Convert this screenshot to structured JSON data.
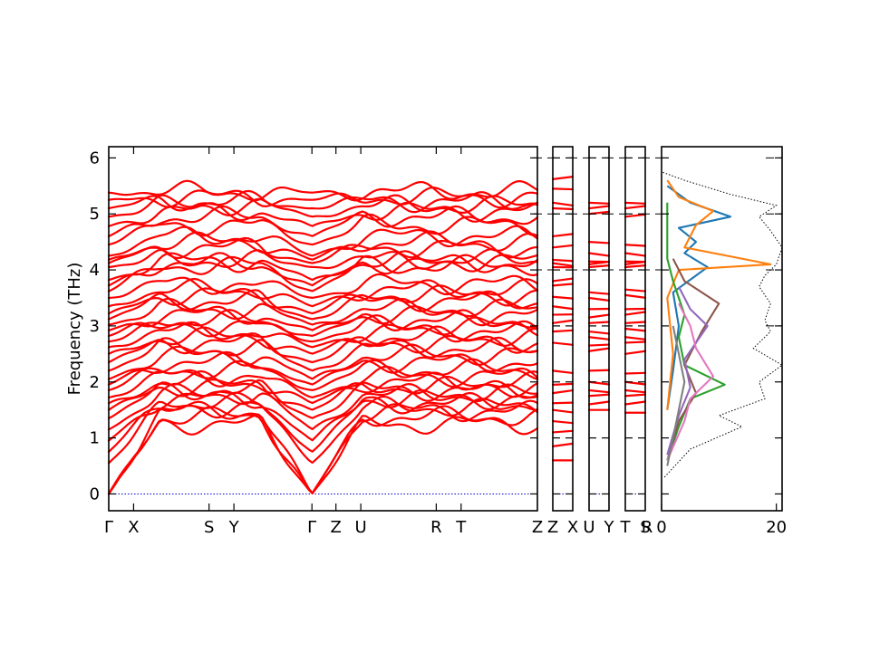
{
  "chart_data": {
    "type": "line",
    "ylabel": "Frequency (THz)",
    "ylim": [
      -0.3,
      6.2
    ],
    "yticks": [
      0,
      1,
      2,
      3,
      4,
      5,
      6
    ],
    "band_color": "#ff0000",
    "zero_line_color": "#0000cc",
    "band_path_labels": [
      "Γ",
      "X",
      "S",
      "Y",
      "Γ",
      "Z",
      "U",
      "R",
      "T",
      "Z",
      "X",
      "U",
      "Y",
      "T",
      "S",
      "R"
    ],
    "panels": [
      {
        "id": "main",
        "xlim": [
          0,
          1
        ],
        "ticks": [
          {
            "label": "Γ",
            "x": 0.0
          },
          {
            "label": "X",
            "x": 0.058
          },
          {
            "label": "S",
            "x": 0.234
          },
          {
            "label": "Y",
            "x": 0.292
          },
          {
            "label": "Γ",
            "x": 0.474
          },
          {
            "label": "Z",
            "x": 0.53
          },
          {
            "label": "U",
            "x": 0.588
          },
          {
            "label": "R",
            "x": 0.764
          },
          {
            "label": "T",
            "x": 0.822
          },
          {
            "label": "Z",
            "x": 1.0
          }
        ],
        "band_frequencies_at_gamma": [
          0,
          0,
          0,
          0.55,
          0.75,
          0.95,
          1.15,
          1.35,
          1.5,
          1.62,
          1.72,
          1.85,
          1.95,
          2.05,
          2.2,
          2.35,
          2.5,
          2.62,
          2.72,
          2.82,
          2.92,
          3.02,
          3.12,
          3.22,
          3.35,
          3.5,
          3.62,
          3.72,
          3.82,
          4.05,
          4.12,
          4.18,
          4.25,
          4.45,
          4.6,
          4.78,
          4.95,
          5.1,
          5.25,
          5.38,
          5.5,
          5.6
        ],
        "band_frequencies_midpath": [
          1.25,
          1.38,
          1.48,
          1.55,
          1.62,
          1.7,
          1.78,
          1.85,
          1.92,
          2.0,
          2.1,
          2.22,
          2.35,
          2.48,
          2.6,
          2.7,
          2.8,
          2.9,
          3.0,
          3.1,
          3.2,
          3.3,
          3.45,
          3.55,
          3.65,
          3.75,
          4.08,
          4.12,
          4.15,
          4.18,
          4.4,
          4.5,
          4.6,
          4.8,
          4.95,
          5.05,
          5.15,
          5.22,
          5.3,
          5.4
        ]
      },
      {
        "id": "zx",
        "ticks": [
          {
            "label": "Z",
            "x": 0
          },
          {
            "label": "X",
            "x": 1
          }
        ],
        "band_frequencies": [
          0.6,
          0.85,
          1.1,
          1.3,
          1.5,
          1.62,
          1.8,
          1.95,
          2.2,
          2.7,
          2.9,
          3.05,
          3.2,
          3.35,
          3.52,
          3.72,
          3.8,
          4.05,
          4.12,
          4.18,
          4.4,
          4.6,
          5.1,
          5.2,
          5.45,
          5.62
        ]
      },
      {
        "id": "uy",
        "ticks": [
          {
            "label": "U",
            "x": 0
          },
          {
            "label": "Y",
            "x": 1
          }
        ],
        "band_frequencies": [
          1.5,
          1.6,
          1.75,
          1.85,
          2.0,
          2.2,
          2.55,
          2.65,
          2.8,
          2.9,
          3.05,
          3.15,
          3.3,
          3.5,
          3.6,
          4.05,
          4.1,
          4.15,
          4.3,
          4.5,
          5.0,
          5.1,
          5.2
        ]
      },
      {
        "id": "ts",
        "ticks": [
          {
            "label": "T",
            "x": 0
          },
          {
            "label": "S",
            "x": 1
          }
        ],
        "band_frequencies": [
          1.45,
          1.6,
          1.75,
          1.85,
          2.0,
          2.15,
          2.5,
          2.7,
          2.8,
          2.95,
          3.05,
          3.2,
          3.3,
          3.55,
          3.65,
          4.05,
          4.1,
          4.15,
          4.3,
          4.45,
          4.95,
          5.1,
          5.2
        ]
      },
      {
        "id": "r",
        "ticks": [
          {
            "label": "R",
            "x": 0
          }
        ],
        "xlabel_right": "R"
      },
      {
        "id": "dos",
        "xlim": [
          0,
          21
        ],
        "xticks": [
          0,
          20
        ],
        "series_colors": [
          "#1f77b4",
          "#ff7f0e",
          "#2ca02c",
          "#8c564b",
          "#9467bd",
          "#e377c2",
          "#7f7f7f"
        ],
        "total": {
          "color": "#000000",
          "freq": [
            0.3,
            0.8,
            1.2,
            1.4,
            1.7,
            2.0,
            2.3,
            2.6,
            2.9,
            3.1,
            3.4,
            3.7,
            3.9,
            4.1,
            4.4,
            4.7,
            4.95,
            5.15,
            5.35,
            5.6,
            5.75
          ],
          "dos": [
            0.5,
            5,
            14,
            10,
            18,
            17,
            21,
            16,
            19,
            18,
            19,
            17,
            18,
            20,
            21,
            19,
            17,
            20,
            12,
            4,
            0
          ]
        },
        "series": [
          {
            "color": "#1f77b4",
            "freq": [
              1.5,
              2.2,
              3.0,
              3.6,
              4.05,
              4.3,
              4.5,
              4.75,
              4.95,
              5.2,
              5.5
            ],
            "dos": [
              1,
              2,
              3,
              2,
              8,
              4,
              6,
              3,
              12,
              5,
              1
            ]
          },
          {
            "color": "#ff7f0e",
            "freq": [
              1.5,
              2.5,
              3.5,
              4.0,
              4.1,
              4.4,
              4.8,
              5.05,
              5.3,
              5.6
            ],
            "dos": [
              1,
              2,
              1,
              3,
              19,
              4,
              6,
              9,
              3,
              1
            ]
          },
          {
            "color": "#2ca02c",
            "freq": [
              0.6,
              1.2,
              1.7,
              1.95,
              2.3,
              2.8,
              3.2,
              3.8,
              4.2,
              4.8,
              5.2
            ],
            "dos": [
              1,
              3,
              5,
              11,
              4,
              3,
              4,
              2,
              1,
              1,
              1
            ]
          },
          {
            "color": "#8c564b",
            "freq": [
              0.6,
              1.3,
              1.8,
              2.3,
              2.9,
              3.4,
              3.8,
              4.2
            ],
            "dos": [
              1,
              3,
              6,
              4,
              7,
              10,
              4,
              2
            ]
          },
          {
            "color": "#9467bd",
            "freq": [
              0.7,
              1.4,
              1.9,
              2.4,
              3.0,
              3.3,
              3.7
            ],
            "dos": [
              1,
              3,
              5,
              4,
              8,
              5,
              3
            ]
          },
          {
            "color": "#e377c2",
            "freq": [
              0.6,
              1.3,
              1.7,
              2.1,
              2.6,
              3.0,
              3.4
            ],
            "dos": [
              1,
              4,
              5,
              9,
              6,
              5,
              3
            ]
          },
          {
            "color": "#7f7f7f",
            "freq": [
              0.5,
              1.0,
              1.5,
              2.0,
              2.5,
              3.0
            ],
            "dos": [
              1,
              2,
              3,
              4,
              3,
              2
            ]
          }
        ]
      }
    ]
  }
}
